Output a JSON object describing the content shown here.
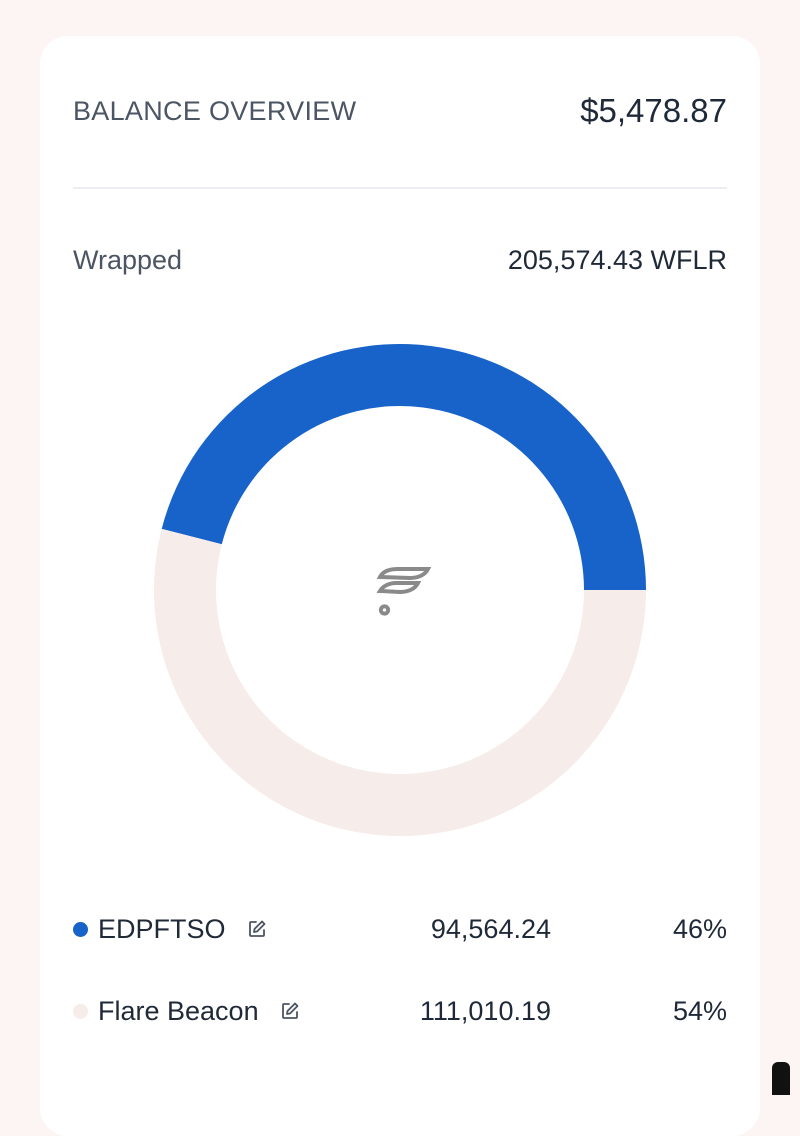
{
  "balance_overview": {
    "title": "BALANCE OVERVIEW",
    "amount": "$5,478.87"
  },
  "wrapped": {
    "label": "Wrapped",
    "value": "205,574.43 WFLR"
  },
  "chart_data": {
    "type": "pie",
    "style": "donut",
    "categories": [
      "EDPFTSO",
      "Flare Beacon"
    ],
    "values": [
      94564.24,
      111010.19
    ],
    "percent": [
      46,
      54
    ],
    "colors": [
      "#1763c9",
      "#f6ecea"
    ],
    "center_icon": "flare-logo-icon"
  },
  "legend": [
    {
      "name": "EDPFTSO",
      "amount": "94,564.24",
      "percent": "46%",
      "color": "#1763c9",
      "icon": "edit-icon"
    },
    {
      "name": "Flare Beacon",
      "amount": "111,010.19",
      "percent": "54%",
      "color": "#f6ecea",
      "icon": "edit-icon"
    }
  ]
}
